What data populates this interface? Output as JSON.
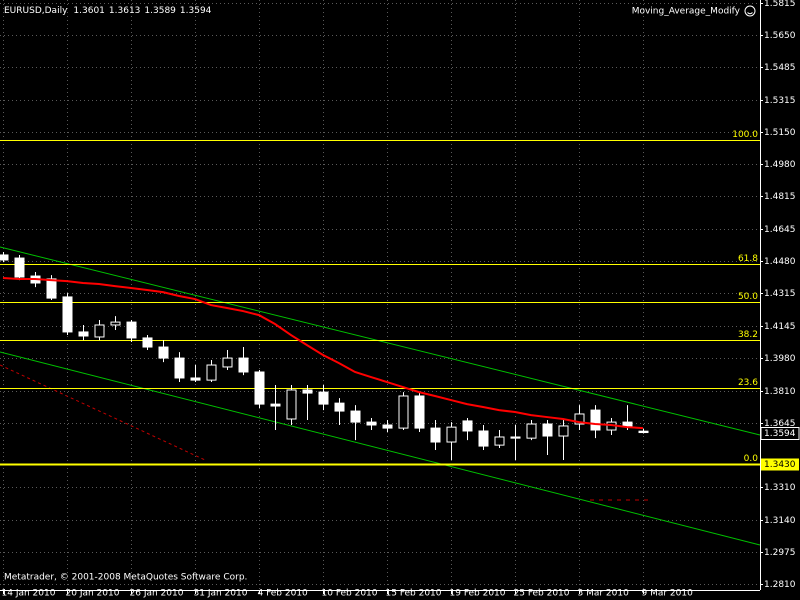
{
  "chart_data": {
    "type": "candlestick",
    "title": "EURUSD,Daily",
    "indicator": "Moving_Average_Modify",
    "footer": "Metatrader, © 2001-2008 MetaQuotes Software Corp.",
    "categories": [
      "14 Jan 2010",
      null,
      null,
      null,
      "20 Jan 2010",
      null,
      null,
      null,
      "26 Jan 2010",
      null,
      null,
      null,
      "31 Jan 2010",
      null,
      null,
      null,
      "4 Feb 2010",
      null,
      null,
      null,
      "10 Feb 2010",
      null,
      null,
      null,
      "15 Feb 2010",
      null,
      null,
      null,
      "19 Feb 2010",
      null,
      null,
      null,
      "25 Feb 2010",
      null,
      null,
      null,
      "3 Mar 2010",
      null,
      null,
      null,
      "9 Mar 2010"
    ],
    "open": [
      1.4512,
      1.4496,
      1.4403,
      1.4388,
      1.4295,
      1.4114,
      1.4088,
      1.415,
      1.4165,
      1.4083,
      1.4036,
      1.3979,
      1.3876,
      1.3865,
      1.3933,
      1.3979,
      1.3907,
      1.3741,
      1.3664,
      1.3814,
      1.3803,
      1.3746,
      1.3705,
      1.3648,
      1.3633,
      1.3617,
      1.3783,
      1.3617,
      1.3545,
      1.3654,
      1.3602,
      1.3529,
      1.3571,
      1.3565,
      1.3638,
      1.3576,
      1.3638,
      1.371,
      1.3607,
      1.3648,
      1.3601
    ],
    "high": [
      1.4527,
      1.4512,
      1.4424,
      1.4408,
      1.4315,
      1.415,
      1.4176,
      1.4196,
      1.4176,
      1.4098,
      1.4072,
      1.401,
      1.3943,
      1.3969,
      1.4021,
      1.4036,
      1.3917,
      1.384,
      1.384,
      1.384,
      1.384,
      1.3772,
      1.3736,
      1.3669,
      1.3659,
      1.3803,
      1.3803,
      1.3659,
      1.3648,
      1.3669,
      1.3633,
      1.3607,
      1.3633,
      1.3659,
      1.3659,
      1.3659,
      1.3736,
      1.3736,
      1.3669,
      1.3736,
      1.3613
    ],
    "low": [
      1.4475,
      1.4382,
      1.4346,
      1.4279,
      1.4098,
      1.4072,
      1.4072,
      1.4124,
      1.4062,
      1.4021,
      1.3958,
      1.3855,
      1.3855,
      1.3855,
      1.3917,
      1.3891,
      1.3721,
      1.3607,
      1.3633,
      1.3659,
      1.371,
      1.3633,
      1.3555,
      1.3607,
      1.3597,
      1.3607,
      1.3597,
      1.3504,
      1.3452,
      1.3555,
      1.3504,
      1.3514,
      1.3452,
      1.3555,
      1.3478,
      1.3452,
      1.3607,
      1.3565,
      1.3581,
      1.3607,
      1.3589
    ],
    "close": [
      1.4486,
      1.4398,
      1.4367,
      1.4289,
      1.4114,
      1.4093,
      1.415,
      1.4165,
      1.4083,
      1.4036,
      1.3979,
      1.3876,
      1.3865,
      1.3943,
      1.3979,
      1.3907,
      1.3741,
      1.3731,
      1.3814,
      1.3798,
      1.3741,
      1.3705,
      1.3648,
      1.3633,
      1.3617,
      1.3783,
      1.3617,
      1.3545,
      1.3622,
      1.3602,
      1.3524,
      1.3571,
      1.3565,
      1.3638,
      1.3576,
      1.3628,
      1.369,
      1.3607,
      1.3648,
      1.3628,
      1.3594
    ],
    "bull_color": "#000000",
    "bear_color": "#ffffff",
    "ma": {
      "color": "#ff0000",
      "values": [
        1.4393,
        1.4388,
        1.4388,
        1.4382,
        1.4377,
        1.4367,
        1.4362,
        1.4351,
        1.4341,
        1.4331,
        1.432,
        1.43,
        1.4284,
        1.4253,
        1.4238,
        1.4222,
        1.4201,
        1.4155,
        1.4098,
        1.4046,
        1.3995,
        1.3953,
        1.3907,
        1.3881,
        1.3855,
        1.3829,
        1.3803,
        1.3783,
        1.3762,
        1.3741,
        1.3726,
        1.371,
        1.37,
        1.3684,
        1.3674,
        1.3664,
        1.3648,
        1.3638,
        1.3633,
        1.3622,
        1.3617
      ]
    },
    "fib_color": "#ffff00",
    "fib_levels": [
      {
        "label": "100.0",
        "price": 1.5105
      },
      {
        "label": "61.8",
        "price": 1.4465
      },
      {
        "label": "50.0",
        "price": 1.4268
      },
      {
        "label": "38.2",
        "price": 1.407
      },
      {
        "label": "23.6",
        "price": 1.3825
      },
      {
        "label": "0.0",
        "price": 1.343,
        "price_label": "1.3430"
      }
    ],
    "ylim": [
      1.278,
      1.583
    ],
    "yticks": [
      {
        "value": 1.5815,
        "label": "1.5815"
      },
      {
        "value": 1.565,
        "label": "1.5650"
      },
      {
        "value": 1.5485,
        "label": "1.5485"
      },
      {
        "value": 1.5315,
        "label": "1.5315"
      },
      {
        "value": 1.515,
        "label": "1.5150"
      },
      {
        "value": 1.498,
        "label": "1.4980"
      },
      {
        "value": 1.4815,
        "label": "1.4815"
      },
      {
        "value": 1.4645,
        "label": "1.4645"
      },
      {
        "value": 1.448,
        "label": "1.4480"
      },
      {
        "value": 1.4315,
        "label": "1.4315"
      },
      {
        "value": 1.4145,
        "label": "1.4145"
      },
      {
        "value": 1.398,
        "label": "1.3980"
      },
      {
        "value": 1.381,
        "label": "1.3810"
      },
      {
        "value": 1.3645,
        "label": "1.3645"
      },
      {
        "value": 1.331,
        "label": "1.3310"
      },
      {
        "value": 1.314,
        "label": "1.3140"
      },
      {
        "value": 1.2975,
        "label": "1.2975"
      },
      {
        "value": 1.281,
        "label": "1.2810"
      }
    ],
    "grid": true
  }
}
